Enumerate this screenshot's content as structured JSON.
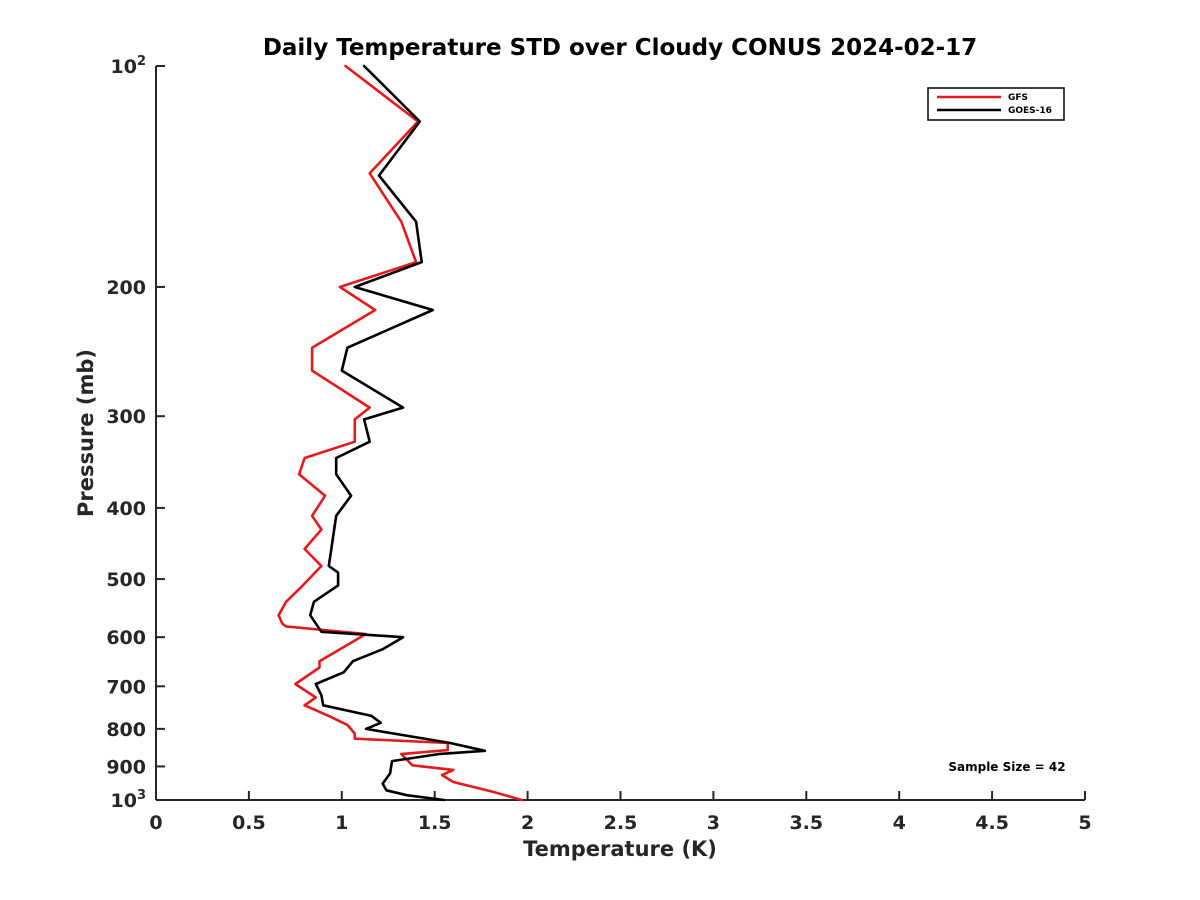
{
  "chart_data": {
    "type": "line",
    "title": "Daily Temperature STD over Cloudy CONUS 2024-02-17",
    "xlabel": "Temperature (K)",
    "ylabel": "Pressure (mb)",
    "xlim": [
      0,
      5
    ],
    "ylim": [
      100,
      1000
    ],
    "y_scale": "log",
    "y_reversed": true,
    "grid": false,
    "legend_position": "top-right",
    "x_ticks": [
      {
        "value": 0,
        "label": "0"
      },
      {
        "value": 0.5,
        "label": "0.5"
      },
      {
        "value": 1,
        "label": "1"
      },
      {
        "value": 1.5,
        "label": "1.5"
      },
      {
        "value": 2,
        "label": "2"
      },
      {
        "value": 2.5,
        "label": "2.5"
      },
      {
        "value": 3,
        "label": "3"
      },
      {
        "value": 3.5,
        "label": "3.5"
      },
      {
        "value": 4,
        "label": "4"
      },
      {
        "value": 4.5,
        "label": "4.5"
      },
      {
        "value": 5,
        "label": "5"
      }
    ],
    "y_ticks": [
      {
        "value": 100,
        "base": "10",
        "exp": "2"
      },
      {
        "value": 200,
        "label": "200"
      },
      {
        "value": 300,
        "label": "300"
      },
      {
        "value": 400,
        "label": "400"
      },
      {
        "value": 500,
        "label": "500"
      },
      {
        "value": 600,
        "label": "600"
      },
      {
        "value": 700,
        "label": "700"
      },
      {
        "value": 800,
        "label": "800"
      },
      {
        "value": 900,
        "label": "900"
      },
      {
        "value": 1000,
        "base": "10",
        "exp": "3"
      }
    ],
    "series": [
      {
        "name": "GFS",
        "color": "#e41a1c",
        "points": [
          {
            "x": 1.02,
            "y": 100
          },
          {
            "x": 1.41,
            "y": 119
          },
          {
            "x": 1.15,
            "y": 140
          },
          {
            "x": 1.32,
            "y": 163
          },
          {
            "x": 1.4,
            "y": 185
          },
          {
            "x": 0.99,
            "y": 200
          },
          {
            "x": 1.18,
            "y": 215
          },
          {
            "x": 0.84,
            "y": 242
          },
          {
            "x": 0.84,
            "y": 260
          },
          {
            "x": 1.15,
            "y": 292
          },
          {
            "x": 1.07,
            "y": 303
          },
          {
            "x": 1.07,
            "y": 325
          },
          {
            "x": 0.8,
            "y": 342
          },
          {
            "x": 0.77,
            "y": 360
          },
          {
            "x": 0.91,
            "y": 385
          },
          {
            "x": 0.84,
            "y": 410
          },
          {
            "x": 0.89,
            "y": 428
          },
          {
            "x": 0.8,
            "y": 455
          },
          {
            "x": 0.89,
            "y": 480
          },
          {
            "x": 0.79,
            "y": 510
          },
          {
            "x": 0.7,
            "y": 537
          },
          {
            "x": 0.66,
            "y": 560
          },
          {
            "x": 0.68,
            "y": 575
          },
          {
            "x": 0.7,
            "y": 580
          },
          {
            "x": 1.13,
            "y": 594
          },
          {
            "x": 0.88,
            "y": 647
          },
          {
            "x": 0.88,
            "y": 660
          },
          {
            "x": 0.75,
            "y": 695
          },
          {
            "x": 0.86,
            "y": 725
          },
          {
            "x": 0.8,
            "y": 743
          },
          {
            "x": 0.93,
            "y": 768
          },
          {
            "x": 1.03,
            "y": 790
          },
          {
            "x": 1.07,
            "y": 812
          },
          {
            "x": 1.07,
            "y": 825
          },
          {
            "x": 1.57,
            "y": 836
          },
          {
            "x": 1.57,
            "y": 855
          },
          {
            "x": 1.32,
            "y": 866
          },
          {
            "x": 1.38,
            "y": 897
          },
          {
            "x": 1.6,
            "y": 910
          },
          {
            "x": 1.54,
            "y": 925
          },
          {
            "x": 1.6,
            "y": 945
          },
          {
            "x": 1.81,
            "y": 974
          },
          {
            "x": 1.97,
            "y": 1000
          }
        ]
      },
      {
        "name": "GOES-16",
        "color": "#000000",
        "points": [
          {
            "x": 1.12,
            "y": 100
          },
          {
            "x": 1.42,
            "y": 119
          },
          {
            "x": 1.2,
            "y": 141
          },
          {
            "x": 1.4,
            "y": 163
          },
          {
            "x": 1.43,
            "y": 185
          },
          {
            "x": 1.07,
            "y": 200
          },
          {
            "x": 1.49,
            "y": 215
          },
          {
            "x": 1.03,
            "y": 242
          },
          {
            "x": 1.0,
            "y": 260
          },
          {
            "x": 1.33,
            "y": 292
          },
          {
            "x": 1.12,
            "y": 303
          },
          {
            "x": 1.15,
            "y": 325
          },
          {
            "x": 0.97,
            "y": 342
          },
          {
            "x": 0.97,
            "y": 360
          },
          {
            "x": 1.05,
            "y": 385
          },
          {
            "x": 0.97,
            "y": 410
          },
          {
            "x": 0.93,
            "y": 480
          },
          {
            "x": 0.98,
            "y": 490
          },
          {
            "x": 0.98,
            "y": 510
          },
          {
            "x": 0.85,
            "y": 537
          },
          {
            "x": 0.83,
            "y": 560
          },
          {
            "x": 0.89,
            "y": 590
          },
          {
            "x": 1.33,
            "y": 600
          },
          {
            "x": 1.22,
            "y": 623
          },
          {
            "x": 1.06,
            "y": 647
          },
          {
            "x": 1.01,
            "y": 670
          },
          {
            "x": 0.86,
            "y": 695
          },
          {
            "x": 0.89,
            "y": 720
          },
          {
            "x": 0.9,
            "y": 743
          },
          {
            "x": 1.16,
            "y": 768
          },
          {
            "x": 1.21,
            "y": 785
          },
          {
            "x": 1.13,
            "y": 800
          },
          {
            "x": 1.58,
            "y": 836
          },
          {
            "x": 1.77,
            "y": 857
          },
          {
            "x": 1.52,
            "y": 866
          },
          {
            "x": 1.27,
            "y": 885
          },
          {
            "x": 1.26,
            "y": 920
          },
          {
            "x": 1.22,
            "y": 950
          },
          {
            "x": 1.24,
            "y": 970
          },
          {
            "x": 1.35,
            "y": 985
          },
          {
            "x": 1.55,
            "y": 1000
          }
        ]
      }
    ],
    "annotations": [
      {
        "text": "Sample Size = 42",
        "x": 4.75,
        "y": 900
      }
    ]
  }
}
